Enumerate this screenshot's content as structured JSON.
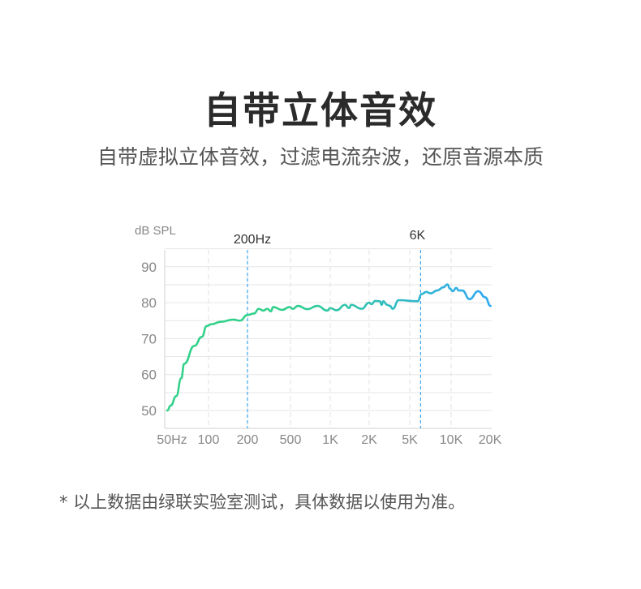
{
  "header": {
    "title": "自带立体音效",
    "subtitle": "自带虚拟立体音效，过滤电流杂波，还原音源本质"
  },
  "footnote": "* 以上数据由绿联实验室测试，具体数据以使用为准。",
  "chart_data": {
    "type": "line",
    "ylabel": "dB SPL",
    "x_scale": "log (tick-spaced)",
    "x_ticks": [
      50,
      100,
      200,
      500,
      1000,
      2000,
      5000,
      10000,
      20000
    ],
    "x_tick_labels": [
      "50Hz",
      "100",
      "200",
      "500",
      "1K",
      "2K",
      "5K",
      "10K",
      "20K"
    ],
    "y_ticks": [
      50,
      60,
      70,
      80,
      90
    ],
    "ylim": [
      45,
      95
    ],
    "xlim": [
      50,
      20000
    ],
    "grid": true,
    "markers": [
      {
        "freq": 200,
        "label": "200Hz"
      },
      {
        "freq": 6000,
        "label": "6K"
      }
    ],
    "colors": {
      "low": "#33d18b",
      "high": "#30a8f2",
      "marker": "#3aa6f0",
      "grid": "#e6e6e6"
    },
    "series": [
      {
        "points": [
          [
            52,
            50
          ],
          [
            55,
            51.4
          ],
          [
            60,
            54
          ],
          [
            65,
            59
          ],
          [
            68,
            63
          ],
          [
            80,
            68
          ],
          [
            90,
            70.5
          ],
          [
            97,
            73.5
          ],
          [
            105,
            74
          ],
          [
            125,
            74.7
          ],
          [
            155,
            75.3
          ],
          [
            175,
            75
          ],
          [
            200,
            76.6
          ],
          [
            230,
            77
          ],
          [
            255,
            78.3
          ],
          [
            280,
            77.8
          ],
          [
            305,
            78.3
          ],
          [
            330,
            77.6
          ],
          [
            345,
            78.8
          ],
          [
            420,
            78
          ],
          [
            490,
            78.8
          ],
          [
            520,
            78.3
          ],
          [
            570,
            79.1
          ],
          [
            670,
            78.2
          ],
          [
            800,
            79.1
          ],
          [
            950,
            77.8
          ],
          [
            1000,
            78.5
          ],
          [
            1120,
            77.9
          ],
          [
            1300,
            79.4
          ],
          [
            1400,
            78.5
          ],
          [
            1450,
            79.4
          ],
          [
            1750,
            78.3
          ],
          [
            2000,
            80
          ],
          [
            2100,
            79.6
          ],
          [
            2300,
            80.5
          ],
          [
            2550,
            80.4
          ],
          [
            2650,
            79.4
          ],
          [
            2750,
            80.4
          ],
          [
            3000,
            79.4
          ],
          [
            3200,
            79.1
          ],
          [
            3400,
            78.3
          ],
          [
            3900,
            80.7
          ],
          [
            5700,
            80.4
          ],
          [
            6100,
            82.4
          ],
          [
            6600,
            83
          ],
          [
            7100,
            82.6
          ],
          [
            7900,
            83.4
          ],
          [
            8800,
            84.3
          ],
          [
            9400,
            85.1
          ],
          [
            9800,
            83.9
          ],
          [
            10300,
            83.2
          ],
          [
            10900,
            84.1
          ],
          [
            11400,
            83.4
          ],
          [
            12100,
            83.4
          ],
          [
            13700,
            81
          ],
          [
            15900,
            83.2
          ],
          [
            17900,
            81.5
          ],
          [
            19600,
            79.1
          ]
        ]
      }
    ]
  }
}
